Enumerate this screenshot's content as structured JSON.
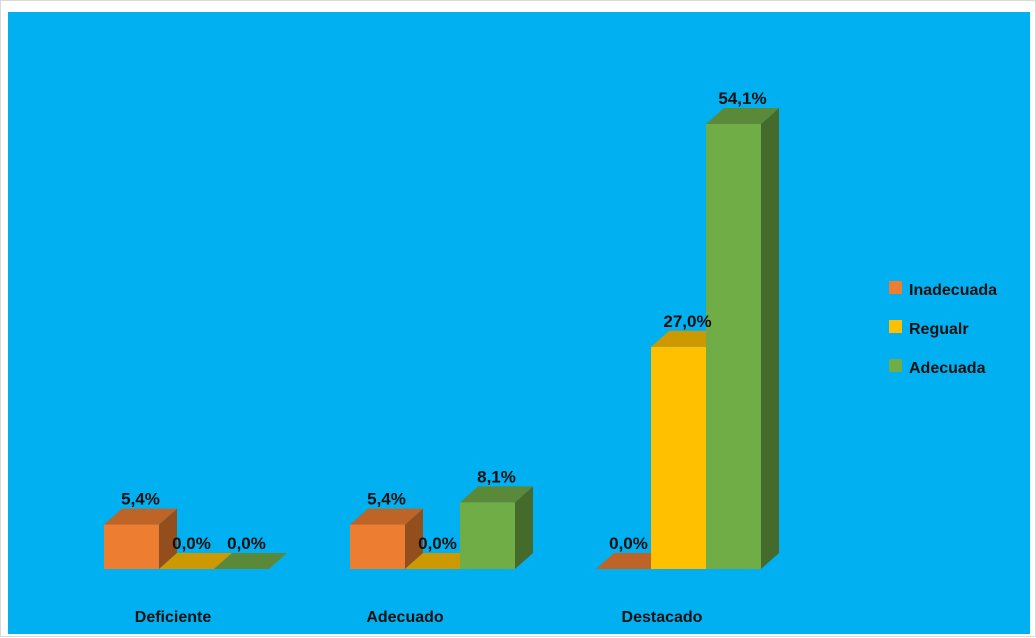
{
  "chart_data": {
    "type": "bar",
    "title": "",
    "xlabel": "",
    "ylabel": "",
    "ylim": [
      0,
      60
    ],
    "grid": false,
    "legend_position": "right",
    "categories": [
      "Deficiente",
      "Adecuado",
      "Destacado"
    ],
    "series": [
      {
        "name": "Inadecuada",
        "color": "#ED7D31",
        "values": [
          5.4,
          5.4,
          0.0
        ],
        "labels": [
          "5,4%",
          "5,4%",
          "0,0%"
        ]
      },
      {
        "name": "Regualr",
        "color": "#FFC000",
        "values": [
          0.0,
          0.0,
          27.0
        ],
        "labels": [
          "0,0%",
          "0,0%",
          "27,0%"
        ]
      },
      {
        "name": "Adecuada",
        "color": "#70AD47",
        "values": [
          0.0,
          8.1,
          54.1
        ],
        "labels": [
          "0,0%",
          "8,1%",
          "54,1%"
        ]
      }
    ]
  },
  "colors": {
    "plot_background": "#00B0F0"
  }
}
